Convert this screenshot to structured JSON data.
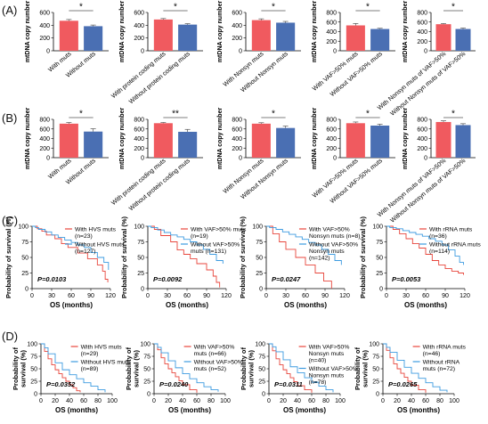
{
  "figure": {
    "row_labels": [
      "(A)",
      "(B)",
      "(C)",
      "(D)"
    ]
  },
  "colors": {
    "red": "#f05a5f",
    "blue": "#4a6fb3",
    "red_curve": "#e8463c",
    "blue_curve": "#3d9be0"
  },
  "chart_data": [
    {
      "id": "A1",
      "type": "bar",
      "ylabel": "mtDNA copy number",
      "ylim": [
        0,
        600
      ],
      "yticks": [
        0,
        200,
        400,
        600
      ],
      "categories": [
        "With muts",
        "Without muts"
      ],
      "values": [
        470,
        385
      ],
      "errors": [
        20,
        18
      ],
      "significance": "*"
    },
    {
      "id": "A2",
      "type": "bar",
      "ylabel": "mtDNA copy number",
      "ylim": [
        0,
        600
      ],
      "yticks": [
        0,
        200,
        400,
        600
      ],
      "categories": [
        "With protein coding muts",
        "Without protein coding muts"
      ],
      "values": [
        490,
        410
      ],
      "errors": [
        15,
        15
      ],
      "significance": "*"
    },
    {
      "id": "A3",
      "type": "bar",
      "ylabel": "mtDNA copy number",
      "ylim": [
        0,
        600
      ],
      "yticks": [
        0,
        200,
        400,
        600
      ],
      "categories": [
        "With Nonsyn muts",
        "Without Nonsyn muts"
      ],
      "values": [
        480,
        440
      ],
      "errors": [
        20,
        20
      ],
      "significance": "*"
    },
    {
      "id": "A4",
      "type": "bar",
      "ylabel": "mtDNA copy number",
      "ylim": [
        0,
        800
      ],
      "yticks": [
        0,
        200,
        400,
        600,
        800
      ],
      "categories": [
        "With VAF>50% muts",
        "Without VAF>50% muts"
      ],
      "values": [
        530,
        455
      ],
      "errors": [
        40,
        15
      ],
      "significance": "*"
    },
    {
      "id": "A5",
      "type": "bar",
      "ylabel": "mtDNA copy number",
      "ylim": [
        0,
        800
      ],
      "yticks": [
        0,
        200,
        400,
        600,
        800
      ],
      "categories": [
        "With Nonsyn muts of VAF>50%",
        "Without Nonsyn muts of VAF>50%"
      ],
      "values": [
        555,
        455
      ],
      "errors": [
        15,
        20
      ],
      "significance": "*"
    },
    {
      "id": "B1",
      "type": "bar",
      "ylabel": "mtDNA copy number",
      "ylim": [
        0,
        800
      ],
      "yticks": [
        0,
        200,
        400,
        600,
        800
      ],
      "categories": [
        "With muts",
        "Without muts"
      ],
      "values": [
        710,
        545
      ],
      "errors": [
        25,
        60
      ],
      "significance": "*"
    },
    {
      "id": "B2",
      "type": "bar",
      "ylabel": "mtDNA copy number",
      "ylim": [
        0,
        800
      ],
      "yticks": [
        0,
        200,
        400,
        600,
        800
      ],
      "categories": [
        "With protein coding muts",
        "Without protein coding muts"
      ],
      "values": [
        720,
        540
      ],
      "errors": [
        15,
        50
      ],
      "significance": "**"
    },
    {
      "id": "B3",
      "type": "bar",
      "ylabel": "mtDNA copy number",
      "ylim": [
        0,
        800
      ],
      "yticks": [
        0,
        200,
        400,
        600,
        800
      ],
      "categories": [
        "With Nonsyn muts",
        "Without Nonsyn muts"
      ],
      "values": [
        710,
        620
      ],
      "errors": [
        20,
        40
      ],
      "significance": "*"
    },
    {
      "id": "B4",
      "type": "bar",
      "ylabel": "mtDNA copy number",
      "ylim": [
        0,
        800
      ],
      "yticks": [
        0,
        200,
        400,
        600,
        800
      ],
      "categories": [
        "With VAF>50% muts",
        "Without VAF>50% muts"
      ],
      "values": [
        720,
        670
      ],
      "errors": [
        25,
        30
      ],
      "significance": "*"
    },
    {
      "id": "B5",
      "type": "bar",
      "ylabel": "mtDNA copy number",
      "ylim": [
        0,
        800
      ],
      "yticks": [
        0,
        200,
        400,
        600,
        800
      ],
      "categories": [
        "With Nonsyn muts of VAF>50%",
        "Without Nonsyn muts of VAF>50%"
      ],
      "values": [
        745,
        680
      ],
      "errors": [
        25,
        30
      ],
      "significance": "*"
    },
    {
      "id": "C1",
      "type": "line",
      "subtype": "kaplan-meier",
      "xlabel": "OS (months)",
      "ylabel": "Probability of survival (%)",
      "xlim": [
        0,
        120
      ],
      "xticks": [
        0,
        30,
        60,
        90,
        120
      ],
      "ylim": [
        0,
        100
      ],
      "yticks": [
        0,
        25,
        50,
        75,
        100
      ],
      "pvalue": "P=0.0103",
      "series": [
        {
          "name": "With HVS muts (n=23)",
          "color": "red",
          "x": [
            0,
            8,
            15,
            22,
            35,
            45,
            55,
            70,
            85,
            100,
            108,
            112,
            116
          ],
          "y": [
            100,
            96,
            92,
            86,
            80,
            72,
            66,
            57,
            48,
            38,
            28,
            15,
            10
          ]
        },
        {
          "name": "Without HVS muts (n=127)",
          "color": "blue",
          "x": [
            0,
            5,
            10,
            20,
            30,
            40,
            50,
            60,
            70,
            80,
            90,
            100,
            110,
            117
          ],
          "y": [
            100,
            98,
            95,
            91,
            86,
            82,
            78,
            74,
            70,
            66,
            58,
            50,
            42,
            30
          ]
        }
      ]
    },
    {
      "id": "C2",
      "type": "line",
      "subtype": "kaplan-meier",
      "xlabel": "OS (months)",
      "ylabel": "Probability of survival (%)",
      "xlim": [
        0,
        120
      ],
      "xticks": [
        0,
        30,
        60,
        90,
        120
      ],
      "ylim": [
        0,
        100
      ],
      "yticks": [
        0,
        25,
        50,
        75,
        100
      ],
      "pvalue": "P=0.0092",
      "series": [
        {
          "name": "With VAF>50% muts (n=19)",
          "color": "red",
          "x": [
            0,
            10,
            20,
            35,
            45,
            55,
            65,
            75,
            90,
            100,
            105,
            110
          ],
          "y": [
            100,
            95,
            85,
            75,
            62,
            55,
            48,
            40,
            30,
            20,
            10,
            2
          ]
        },
        {
          "name": "Without VAF>50% muts (n=131)",
          "color": "blue",
          "x": [
            0,
            5,
            15,
            25,
            35,
            45,
            55,
            65,
            75,
            85,
            95,
            105,
            115
          ],
          "y": [
            100,
            98,
            94,
            90,
            86,
            83,
            79,
            75,
            70,
            63,
            55,
            45,
            40
          ]
        }
      ]
    },
    {
      "id": "C3",
      "type": "line",
      "subtype": "kaplan-meier",
      "xlabel": "OS (months)",
      "ylabel": "Probability of survival (%)",
      "xlim": [
        0,
        120
      ],
      "xticks": [
        0,
        30,
        60,
        90,
        120
      ],
      "ylim": [
        0,
        100
      ],
      "yticks": [
        0,
        25,
        50,
        75,
        100
      ],
      "pvalue": "P=0.0247",
      "series": [
        {
          "name": "With VAF>50% Nonsyn muts (n=8)",
          "color": "red",
          "x": [
            0,
            10,
            20,
            30,
            45,
            60,
            75,
            88,
            100
          ],
          "y": [
            100,
            88,
            75,
            63,
            50,
            38,
            25,
            12,
            0
          ]
        },
        {
          "name": "Without VAF>50% Nonsyn muts (n=142)",
          "color": "blue",
          "x": [
            0,
            5,
            15,
            25,
            35,
            45,
            55,
            65,
            75,
            85,
            95,
            105,
            115
          ],
          "y": [
            100,
            98,
            95,
            91,
            87,
            83,
            79,
            74,
            70,
            63,
            55,
            45,
            38
          ]
        }
      ]
    },
    {
      "id": "C4",
      "type": "line",
      "subtype": "kaplan-meier",
      "xlabel": "OS (months)",
      "ylabel": "Probability of survival (%)",
      "xlim": [
        0,
        120
      ],
      "xticks": [
        0,
        30,
        60,
        90,
        120
      ],
      "ylim": [
        0,
        100
      ],
      "yticks": [
        0,
        25,
        50,
        75,
        100
      ],
      "pvalue": "P=0.0053",
      "series": [
        {
          "name": "With rRNA muts (n=36)",
          "color": "red",
          "x": [
            0,
            10,
            20,
            30,
            40,
            50,
            60,
            70,
            80,
            90,
            100,
            110,
            118
          ],
          "y": [
            100,
            95,
            88,
            80,
            72,
            65,
            55,
            45,
            38,
            32,
            28,
            25,
            22
          ]
        },
        {
          "name": "Without rRNA muts (n=114)",
          "color": "blue",
          "x": [
            0,
            5,
            15,
            25,
            35,
            45,
            55,
            65,
            75,
            85,
            95,
            105,
            112,
            118
          ],
          "y": [
            100,
            98,
            96,
            93,
            90,
            87,
            84,
            80,
            76,
            70,
            62,
            52,
            42,
            38
          ]
        }
      ]
    },
    {
      "id": "D1",
      "type": "line",
      "subtype": "kaplan-meier",
      "xlabel": "OS (months)",
      "ylabel": "Probability of survival (%)",
      "xlim": [
        0,
        100
      ],
      "xticks": [
        0,
        20,
        40,
        60,
        80,
        100
      ],
      "ylim": [
        0,
        100
      ],
      "yticks": [
        0,
        25,
        50,
        75,
        100
      ],
      "pvalue": "P=0.0352",
      "series": [
        {
          "name": "With HVS muts (n=29)",
          "color": "red",
          "x": [
            0,
            5,
            10,
            15,
            20,
            25,
            30,
            35,
            40,
            45,
            50,
            55
          ],
          "y": [
            100,
            85,
            70,
            58,
            48,
            40,
            32,
            25,
            18,
            12,
            6,
            3
          ]
        },
        {
          "name": "Without HVS muts (n=89)",
          "color": "blue",
          "x": [
            0,
            5,
            10,
            20,
            30,
            40,
            50,
            60,
            70,
            80,
            90
          ],
          "y": [
            100,
            92,
            80,
            62,
            48,
            38,
            30,
            22,
            15,
            8,
            3
          ]
        }
      ]
    },
    {
      "id": "D2",
      "type": "line",
      "subtype": "kaplan-meier",
      "xlabel": "OS (months)",
      "ylabel": "Probability of survival (%)",
      "xlim": [
        0,
        100
      ],
      "xticks": [
        0,
        20,
        40,
        60,
        80,
        100
      ],
      "ylim": [
        0,
        100
      ],
      "yticks": [
        0,
        25,
        50,
        75,
        100
      ],
      "pvalue": "P=0.0240",
      "series": [
        {
          "name": "With VAF>50% muts (n=66)",
          "color": "red",
          "x": [
            0,
            5,
            10,
            15,
            20,
            25,
            30,
            35,
            40,
            50,
            60
          ],
          "y": [
            100,
            88,
            72,
            60,
            50,
            42,
            34,
            26,
            18,
            8,
            2
          ]
        },
        {
          "name": "Without VAF>50% muts (n=52)",
          "color": "blue",
          "x": [
            0,
            5,
            10,
            20,
            30,
            40,
            50,
            60,
            70,
            80,
            90
          ],
          "y": [
            100,
            93,
            82,
            66,
            52,
            40,
            30,
            22,
            14,
            8,
            4
          ]
        }
      ]
    },
    {
      "id": "D3",
      "type": "line",
      "subtype": "kaplan-meier",
      "xlabel": "OS (months)",
      "ylabel": "Probability of survival (%)",
      "xlim": [
        0,
        100
      ],
      "xticks": [
        0,
        20,
        40,
        60,
        80,
        100
      ],
      "ylim": [
        0,
        100
      ],
      "yticks": [
        0,
        25,
        50,
        75,
        100
      ],
      "pvalue": "P=0.0311",
      "series": [
        {
          "name": "With VAF>50% Nonsyn muts (n=40)",
          "color": "red",
          "x": [
            0,
            5,
            10,
            15,
            20,
            25,
            30,
            35,
            40,
            50,
            60
          ],
          "y": [
            100,
            86,
            70,
            58,
            48,
            40,
            32,
            24,
            16,
            8,
            2
          ]
        },
        {
          "name": "Without VAF>50% Nonsyn muts (n=78)",
          "color": "blue",
          "x": [
            0,
            5,
            10,
            20,
            30,
            40,
            50,
            60,
            70,
            80,
            90
          ],
          "y": [
            100,
            94,
            84,
            68,
            54,
            42,
            32,
            23,
            15,
            8,
            3
          ]
        }
      ]
    },
    {
      "id": "D4",
      "type": "line",
      "subtype": "kaplan-meier",
      "xlabel": "OS (months)",
      "ylabel": "Probability of survival (%)",
      "xlim": [
        0,
        100
      ],
      "xticks": [
        0,
        20,
        40,
        60,
        80,
        100
      ],
      "ylim": [
        0,
        100
      ],
      "yticks": [
        0,
        25,
        50,
        75,
        100
      ],
      "pvalue": "P=0.0265",
      "series": [
        {
          "name": "With rRNA muts (n=46)",
          "color": "red",
          "x": [
            0,
            5,
            10,
            15,
            20,
            25,
            30,
            35,
            40,
            50,
            60
          ],
          "y": [
            100,
            87,
            72,
            60,
            50,
            41,
            33,
            25,
            17,
            8,
            2
          ]
        },
        {
          "name": "Without rRNA muts (n=72)",
          "color": "blue",
          "x": [
            0,
            5,
            10,
            20,
            30,
            40,
            50,
            60,
            70,
            80,
            90
          ],
          "y": [
            100,
            93,
            83,
            67,
            53,
            41,
            31,
            22,
            14,
            7,
            3
          ]
        }
      ]
    }
  ]
}
